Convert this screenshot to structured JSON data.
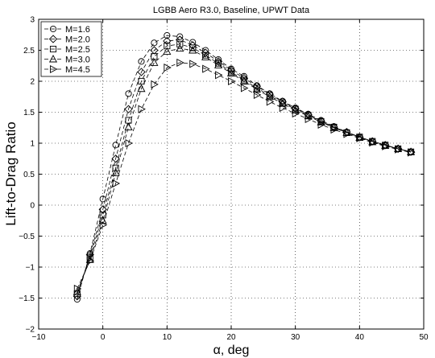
{
  "chart_data": {
    "type": "line",
    "title": "LGBB Aero R3.0, Baseline, UPWT Data",
    "xlabel": "α, deg",
    "ylabel": "Lift-to-Drag Ratio",
    "xlim": [
      -10,
      50
    ],
    "ylim": [
      -2,
      3
    ],
    "xticks": [
      -10,
      0,
      10,
      20,
      30,
      40,
      50
    ],
    "yticks": [
      -2,
      -1.5,
      -1,
      -0.5,
      0,
      0.5,
      1,
      1.5,
      2,
      2.5,
      3
    ],
    "grid": true,
    "legend_position": "top-left",
    "line_style": "dashed",
    "line_color": "#000000",
    "series": [
      {
        "name": "M=1.6",
        "marker": "circle",
        "x": [
          -4,
          -2,
          0,
          2,
          4,
          6,
          8,
          10,
          12,
          14,
          16,
          18,
          20,
          22,
          24,
          26,
          28,
          30,
          32,
          34,
          36,
          38,
          40,
          42,
          44,
          46,
          48
        ],
        "y": [
          -1.52,
          -0.78,
          0.1,
          0.97,
          1.8,
          2.32,
          2.62,
          2.74,
          2.72,
          2.63,
          2.5,
          2.35,
          2.2,
          2.08,
          1.93,
          1.8,
          1.68,
          1.57,
          1.47,
          1.37,
          1.27,
          1.18,
          1.1,
          1.03,
          0.97,
          0.91,
          0.86
        ]
      },
      {
        "name": "M=2.0",
        "marker": "diamond",
        "x": [
          -4,
          -2,
          0,
          2,
          4,
          6,
          8,
          10,
          12,
          14,
          16,
          18,
          20,
          22,
          24,
          26,
          28,
          30,
          32,
          34,
          36,
          38,
          40,
          42,
          44,
          46,
          48
        ],
        "y": [
          -1.47,
          -0.8,
          -0.07,
          0.75,
          1.55,
          2.15,
          2.5,
          2.65,
          2.67,
          2.58,
          2.46,
          2.32,
          2.18,
          2.05,
          1.92,
          1.79,
          1.67,
          1.56,
          1.46,
          1.36,
          1.26,
          1.18,
          1.1,
          1.03,
          0.97,
          0.91,
          0.86
        ]
      },
      {
        "name": "M=2.5",
        "marker": "square",
        "x": [
          -4,
          -2,
          0,
          2,
          4,
          6,
          8,
          10,
          12,
          14,
          16,
          18,
          20,
          22,
          24,
          26,
          28,
          30,
          32,
          34,
          36,
          38,
          40,
          42,
          44,
          46,
          48
        ],
        "y": [
          -1.43,
          -0.84,
          -0.16,
          0.6,
          1.37,
          2.0,
          2.4,
          2.57,
          2.6,
          2.54,
          2.42,
          2.29,
          2.15,
          2.02,
          1.89,
          1.77,
          1.65,
          1.55,
          1.45,
          1.35,
          1.26,
          1.17,
          1.1,
          1.03,
          0.97,
          0.91,
          0.86
        ]
      },
      {
        "name": "M=3.0",
        "marker": "triangle-up",
        "x": [
          -4,
          -2,
          0,
          2,
          4,
          6,
          8,
          10,
          12,
          14,
          16,
          18,
          20,
          22,
          24,
          26,
          28,
          30,
          32,
          34,
          36,
          38,
          40,
          42,
          44,
          46,
          48
        ],
        "y": [
          -1.4,
          -0.88,
          -0.25,
          0.52,
          1.26,
          1.88,
          2.3,
          2.48,
          2.53,
          2.5,
          2.39,
          2.26,
          2.13,
          2.0,
          1.87,
          1.75,
          1.64,
          1.53,
          1.44,
          1.34,
          1.25,
          1.17,
          1.09,
          1.02,
          0.96,
          0.91,
          0.86
        ]
      },
      {
        "name": "M=4.5",
        "marker": "triangle-right",
        "x": [
          -4,
          -2,
          0,
          2,
          4,
          6,
          8,
          10,
          12,
          14,
          16,
          18,
          20,
          22,
          24,
          26,
          28,
          30,
          32,
          34,
          36,
          38,
          40,
          42,
          44,
          46,
          48
        ],
        "y": [
          -1.35,
          -0.9,
          -0.32,
          0.35,
          1.0,
          1.55,
          1.95,
          2.22,
          2.3,
          2.28,
          2.2,
          2.1,
          2.0,
          1.89,
          1.78,
          1.67,
          1.57,
          1.48,
          1.39,
          1.3,
          1.22,
          1.15,
          1.08,
          1.01,
          0.95,
          0.9,
          0.85
        ]
      }
    ]
  }
}
